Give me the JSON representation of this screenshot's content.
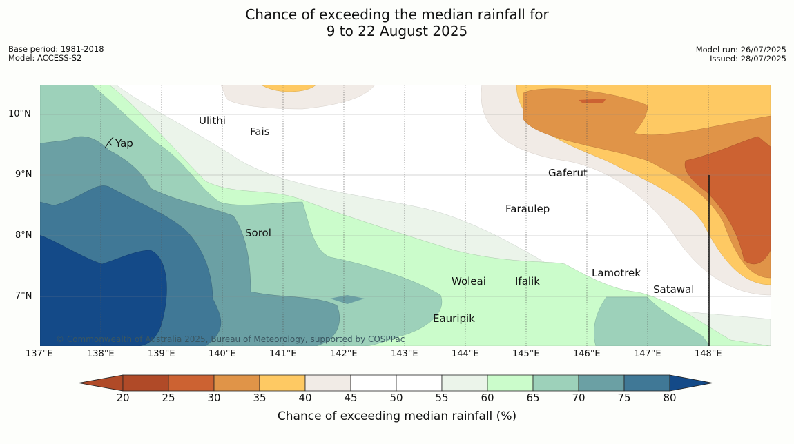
{
  "title_line1": "Chance of exceeding the median rainfall for",
  "title_line2": "9 to 22 August 2025",
  "base_period": "Base period: 1981-2018",
  "model": "Model: ACCESS-S2",
  "model_run": "Model run: 26/07/2025",
  "issued": "Issued: 28/07/2025",
  "copyright": "© Commonwealth of Australia 2025, Bureau of Meteorology, supported by COSPPac",
  "lon_labels": [
    "137°E",
    "138°E",
    "139°E",
    "140°E",
    "141°E",
    "142°E",
    "143°E",
    "144°E",
    "145°E",
    "146°E",
    "147°E",
    "148°E"
  ],
  "lat_labels": [
    "10°N",
    "9°N",
    "8°N",
    "7°N"
  ],
  "places": {
    "ulithi": "Ulithi",
    "fais": "Fais",
    "yap": "Yap",
    "gaferut": "Gaferut",
    "faraulep": "Faraulep",
    "sorol": "Sorol",
    "lamotrek": "Lamotrek",
    "woleai": "Woleai",
    "ifalik": "Ifalik",
    "satawal": "Satawal",
    "eauripik": "Eauripik"
  },
  "colorbar": {
    "title": "Chance of exceeding median rainfall (%)",
    "ticks": [
      "20",
      "25",
      "30",
      "35",
      "40",
      "45",
      "50",
      "55",
      "60",
      "65",
      "70",
      "75",
      "80"
    ],
    "colors": [
      "#b04a28",
      "#cc6232",
      "#e09448",
      "#fec963",
      "#f1ebe6",
      "#ffffff",
      "#ffffff",
      "#ebf4ea",
      "#cbfccb",
      "#9dd1ba",
      "#6ba0a4",
      "#407896",
      "#144a88"
    ]
  }
}
